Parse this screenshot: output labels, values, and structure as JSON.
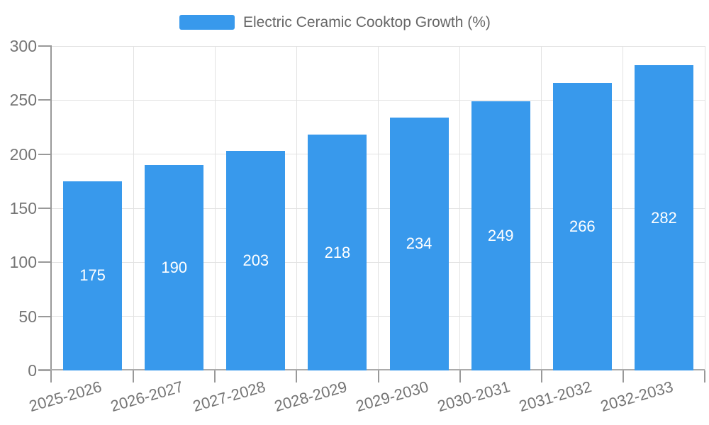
{
  "legend": {
    "label": "Electric Ceramic Cooktop Growth (%)"
  },
  "chart_data": {
    "type": "bar",
    "title": "Electric Ceramic Cooktop Growth (%)",
    "series_name": "Electric Ceramic Cooktop Growth (%)",
    "categories": [
      "2025-2026",
      "2026-2027",
      "2027-2028",
      "2028-2029",
      "2029-2030",
      "2030-2031",
      "2031-2032",
      "2032-2033"
    ],
    "values": [
      175,
      190,
      203,
      218,
      234,
      249,
      266,
      282
    ],
    "bar_value_labels": [
      "175",
      "190",
      "203",
      "218",
      "234",
      "249",
      "266",
      "282"
    ],
    "xlabel": "",
    "ylabel": "",
    "ylim": [
      0,
      300
    ],
    "yticks": [
      0,
      50,
      100,
      150,
      200,
      250,
      300
    ],
    "grid": true,
    "legend_position": "top-center",
    "value_label_position": "center-of-bar"
  },
  "colors": {
    "bar": "#3899EC",
    "axis_y": "#999999",
    "axis_x": "#ABABAB",
    "tick": "#999999",
    "grid": "#E2E2E2",
    "axis_text": "#757575",
    "legend_text": "#666666",
    "bar_label_text": "#FFFFFF"
  }
}
